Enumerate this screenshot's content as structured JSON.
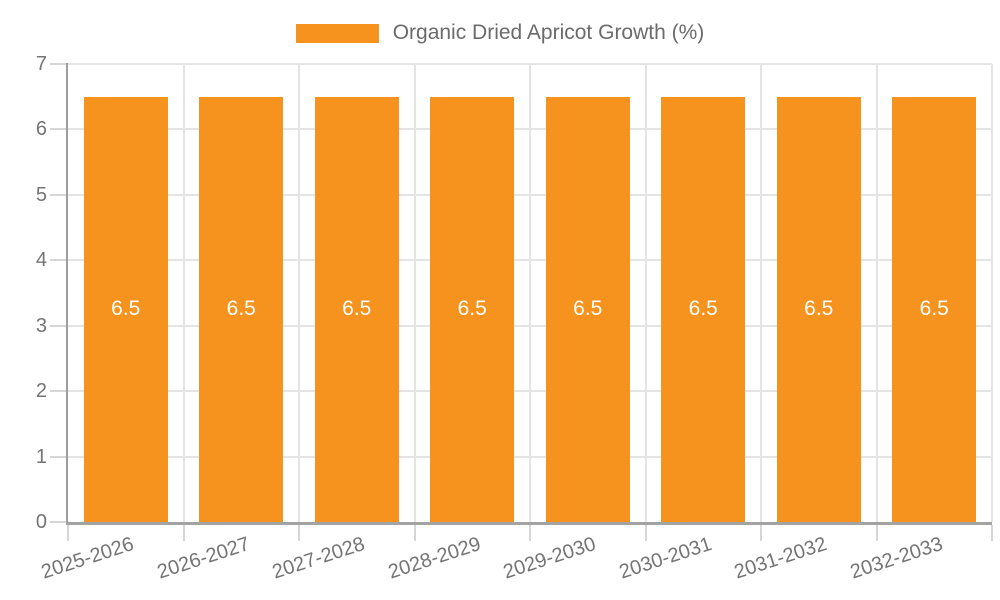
{
  "legend": {
    "position": "top",
    "label": "Organic Dried Apricot Growth (%)"
  },
  "chart_data": {
    "type": "bar",
    "title": "Organic Dried Apricot Growth (%)",
    "categories": [
      "2025-2026",
      "2026-2027",
      "2027-2028",
      "2028-2029",
      "2029-2030",
      "2030-2031",
      "2031-2032",
      "2032-2033"
    ],
    "series": [
      {
        "name": "Organic Dried Apricot Growth (%)",
        "values": [
          6.5,
          6.5,
          6.5,
          6.5,
          6.5,
          6.5,
          6.5,
          6.5
        ]
      }
    ],
    "bar_value_labels": [
      "6.5",
      "6.5",
      "6.5",
      "6.5",
      "6.5",
      "6.5",
      "6.5",
      "6.5"
    ],
    "xlabel": "",
    "ylabel": "",
    "ylim": [
      0,
      7
    ],
    "yticks": [
      0,
      1,
      2,
      3,
      4,
      5,
      6,
      7
    ],
    "grid": true,
    "legend_position": "top",
    "colors": {
      "bar": "#f6921e",
      "axis_text": "#757575",
      "legend_text": "#6b6b6b",
      "gridline": "#e4e4e4",
      "axis_line": "#9e9e9e",
      "value_label": "#ffffff"
    }
  }
}
